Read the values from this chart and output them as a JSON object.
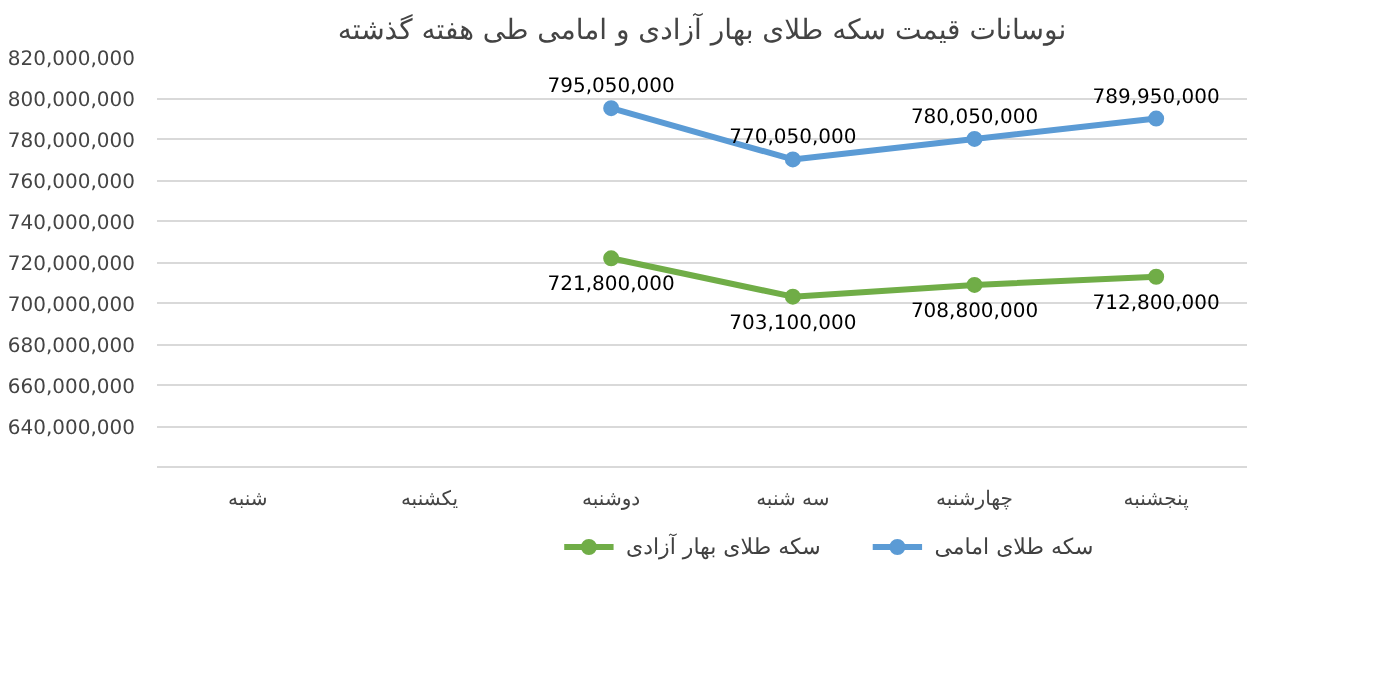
{
  "chart_data": {
    "type": "line",
    "title": "نوسانات قیمت سکه طلای بهار آزادی و امامی طی هفته گذشته",
    "categories": [
      "شنبه",
      "یکشنبه",
      "دوشنبه",
      "سه شنبه",
      "چهارشنبه",
      "پنجشنبه"
    ],
    "series": [
      {
        "name": "سکه طلای بهار آزادی",
        "color": "#70ad47",
        "values": [
          null,
          null,
          721800000,
          703100000,
          708800000,
          712800000
        ],
        "value_labels": [
          null,
          null,
          "721,800,000",
          "703,100,000",
          "708,800,000",
          "712,800,000"
        ]
      },
      {
        "name": "سکه طلای امامی",
        "color": "#5b9bd5",
        "values": [
          null,
          null,
          795050000,
          770050000,
          780050000,
          789950000
        ],
        "value_labels": [
          null,
          null,
          "795,050,000",
          "770,050,000",
          "780,050,000",
          "789,950,000"
        ]
      }
    ],
    "ylim": [
      620000000,
      820000000
    ],
    "yticks": [
      {
        "value": 640000000,
        "label": "640,000,000"
      },
      {
        "value": 660000000,
        "label": "660,000,000"
      },
      {
        "value": 680000000,
        "label": "680,000,000"
      },
      {
        "value": 700000000,
        "label": "700,000,000"
      },
      {
        "value": 720000000,
        "label": "720,000,000"
      },
      {
        "value": 740000000,
        "label": "740,000,000"
      },
      {
        "value": 760000000,
        "label": "760,000,000"
      },
      {
        "value": 780000000,
        "label": "780,000,000"
      },
      {
        "value": 800000000,
        "label": "800,000,000"
      },
      {
        "value": 820000000,
        "label": "820,000,000"
      }
    ],
    "grid": "y",
    "legend": "bottom",
    "marker": "circle",
    "line_style": "solid"
  }
}
